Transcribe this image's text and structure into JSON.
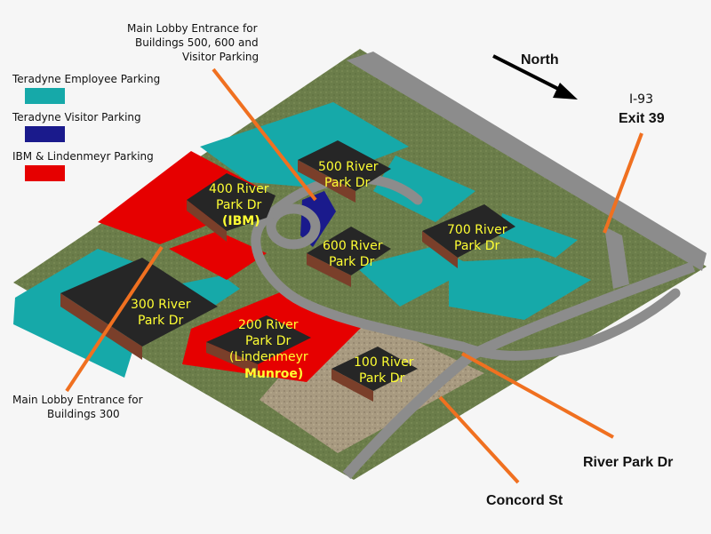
{
  "legend": {
    "items": [
      {
        "label": "Teradyne Employee Parking",
        "color": "#16a9a9"
      },
      {
        "label": "Teradyne Visitor Parking",
        "color": "#1a1a8c"
      },
      {
        "label": "IBM & Lindenmeyr Parking",
        "color": "#e60000"
      }
    ]
  },
  "compass": {
    "label": "North"
  },
  "highway": {
    "line1": "I-93",
    "line2": "Exit 39"
  },
  "annotations": {
    "top_lobby": [
      "Main Lobby Entrance for",
      "Buildings 500, 600 and",
      "Visitor Parking"
    ],
    "bottom_lobby": [
      "Main Lobby Entrance for",
      "Buildings 300"
    ]
  },
  "buildings": {
    "b400": [
      "400 River",
      "Park Dr",
      "(IBM)"
    ],
    "b500": [
      "500 River",
      "Park Dr"
    ],
    "b600": [
      "600 River",
      "Park Dr"
    ],
    "b700": [
      "700 River",
      "Park Dr"
    ],
    "b300": [
      "300 River",
      "Park Dr"
    ],
    "b200": [
      "200 River",
      "Park Dr",
      "(Lindenmeyr",
      "Munroe)"
    ],
    "b100": [
      "100 River",
      "Park Dr"
    ]
  },
  "roads": {
    "river_park": "River Park Dr",
    "concord": "Concord St"
  },
  "colors": {
    "grass": "#6b7d4a",
    "road": "#8c8c8c",
    "roof": "#262626",
    "wall": "#7a3f2a",
    "callout": "#f07020"
  }
}
